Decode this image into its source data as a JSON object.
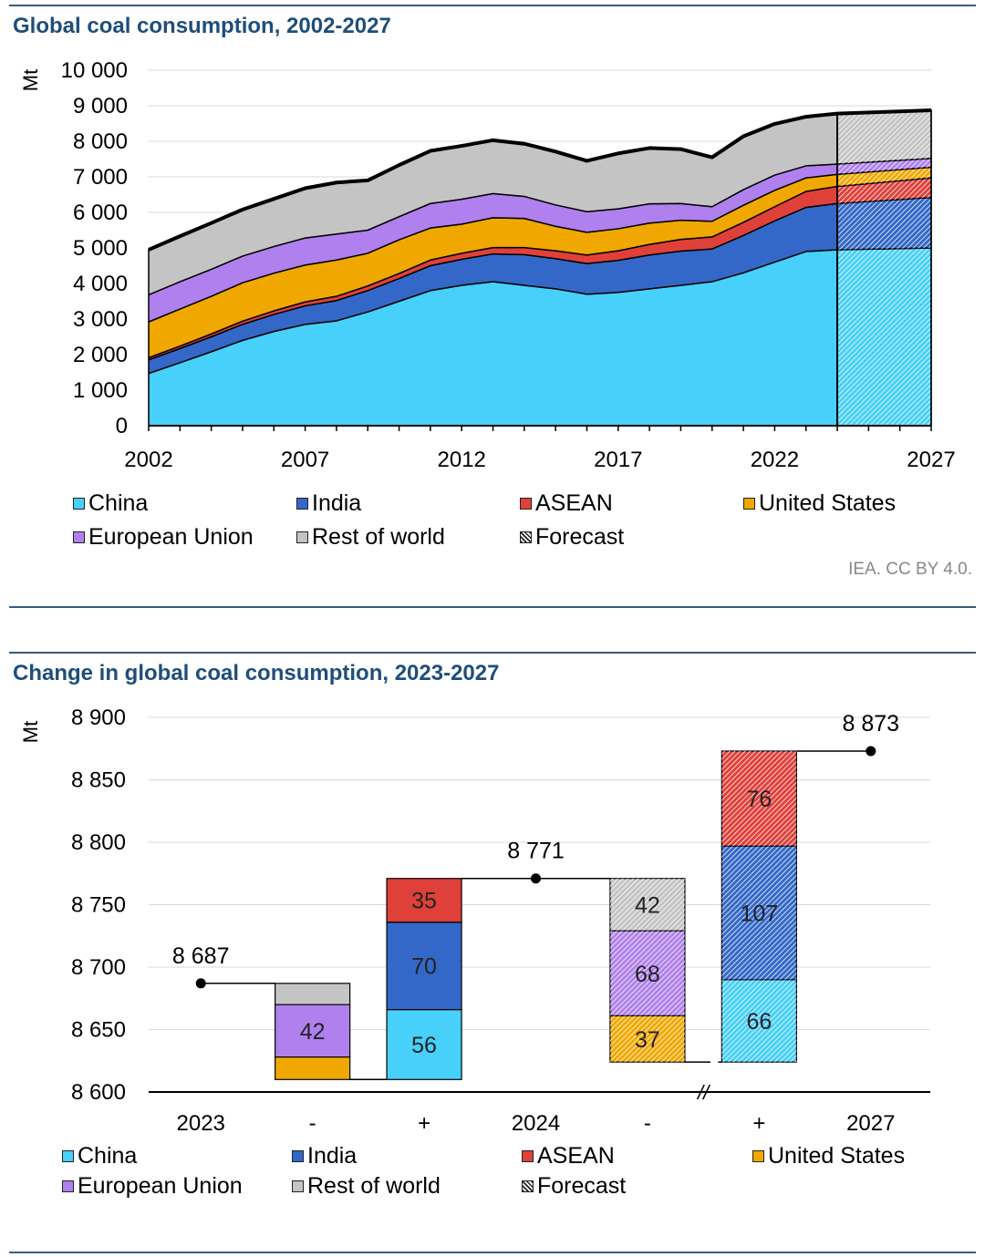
{
  "credit": "IEA. CC BY 4.0.",
  "colors": {
    "China": "#46d0fa",
    "India": "#3468c8",
    "ASEAN": "#e0403a",
    "United States": "#f0a800",
    "European Union": "#b080ee",
    "Rest of world": "#c4c4c4",
    "Forecast": "#ffffff"
  },
  "legend": [
    "China",
    "India",
    "ASEAN",
    "United States",
    "European Union",
    "Rest of world",
    "Forecast"
  ],
  "chart_data": [
    {
      "type": "area",
      "title": "Global coal consumption, 2002-2027",
      "ylabel": "Mt",
      "xlabel": "",
      "ylim": [
        0,
        10000
      ],
      "yticks": [
        "0",
        "1 000",
        "2 000",
        "3 000",
        "4 000",
        "5 000",
        "6 000",
        "7 000",
        "8 000",
        "9 000",
        "10 000"
      ],
      "xtick_labels": [
        "2002",
        "2007",
        "2012",
        "2017",
        "2022",
        "2027"
      ],
      "x": [
        2002,
        2003,
        2004,
        2005,
        2006,
        2007,
        2008,
        2009,
        2010,
        2011,
        2012,
        2013,
        2014,
        2015,
        2016,
        2017,
        2018,
        2019,
        2020,
        2021,
        2022,
        2023,
        2024,
        2027
      ],
      "forecast_from": 2024,
      "series": [
        {
          "name": "China",
          "values": [
            1470,
            1770,
            2080,
            2400,
            2650,
            2850,
            2950,
            3200,
            3500,
            3800,
            3950,
            4050,
            3950,
            3850,
            3700,
            3750,
            3850,
            3950,
            4050,
            4300,
            4600,
            4900,
            4950,
            5000
          ]
        },
        {
          "name": "India",
          "values": [
            380,
            400,
            420,
            450,
            480,
            520,
            570,
            600,
            640,
            700,
            730,
            780,
            860,
            850,
            860,
            900,
            950,
            960,
            920,
            1050,
            1160,
            1240,
            1300,
            1420
          ]
        },
        {
          "name": "ASEAN",
          "values": [
            60,
            70,
            80,
            90,
            100,
            110,
            120,
            130,
            140,
            160,
            170,
            180,
            200,
            220,
            240,
            270,
            300,
            330,
            340,
            370,
            400,
            450,
            480,
            550
          ]
        },
        {
          "name": "United States",
          "values": [
            1010,
            1040,
            1060,
            1080,
            1060,
            1040,
            1020,
            920,
            950,
            900,
            820,
            840,
            820,
            690,
            640,
            620,
            600,
            540,
            440,
            480,
            460,
            380,
            340,
            300
          ]
        },
        {
          "name": "European Union",
          "values": [
            760,
            770,
            760,
            750,
            750,
            760,
            730,
            650,
            650,
            690,
            700,
            680,
            620,
            600,
            580,
            560,
            540,
            470,
            410,
            440,
            430,
            340,
            290,
            250
          ]
        },
        {
          "name": "Rest of world",
          "values": [
            1270,
            1280,
            1300,
            1310,
            1340,
            1400,
            1450,
            1400,
            1450,
            1480,
            1500,
            1500,
            1480,
            1500,
            1430,
            1560,
            1570,
            1530,
            1390,
            1500,
            1440,
            1380,
            1420,
            1353
          ]
        }
      ],
      "totals_label": "Total",
      "legend_position": "bottom"
    },
    {
      "type": "bar",
      "subtype": "waterfall",
      "title": "Change in global coal consumption, 2023-2027",
      "ylabel": "Mt",
      "xlabel": "",
      "ylim": [
        8600,
        8900
      ],
      "yticks": [
        "8 600",
        "8 650",
        "8 700",
        "8 750",
        "8 800",
        "8 850",
        "8 900"
      ],
      "categories": [
        "2023",
        "-",
        "+",
        "2024",
        "-",
        "+",
        "2027"
      ],
      "totals": [
        {
          "category": "2023",
          "value": 8687,
          "label": "8 687"
        },
        {
          "category": "2024",
          "value": 8771,
          "label": "8 771"
        },
        {
          "category": "2027",
          "value": 8873,
          "label": "8 873"
        }
      ],
      "steps": [
        {
          "category_index": 1,
          "top": 8687,
          "segments": [
            {
              "series": "Rest of world",
              "value": 17,
              "label": ""
            },
            {
              "series": "European Union",
              "value": 42,
              "label": "42"
            },
            {
              "series": "United States",
              "value": 18,
              "label": ""
            }
          ],
          "forecast": false
        },
        {
          "category_index": 2,
          "bottom": 8610,
          "segments": [
            {
              "series": "China",
              "value": 56,
              "label": "56"
            },
            {
              "series": "India",
              "value": 70,
              "label": "70"
            },
            {
              "series": "ASEAN",
              "value": 35,
              "label": "35"
            }
          ],
          "forecast": false
        },
        {
          "category_index": 4,
          "top": 8771,
          "segments": [
            {
              "series": "Rest of world",
              "value": 42,
              "label": "42"
            },
            {
              "series": "European Union",
              "value": 68,
              "label": "68"
            },
            {
              "series": "United States",
              "value": 37,
              "label": "37"
            }
          ],
          "forecast": true
        },
        {
          "category_index": 5,
          "bottom": 8624,
          "segments": [
            {
              "series": "China",
              "value": 66,
              "label": "66"
            },
            {
              "series": "India",
              "value": 107,
              "label": "107"
            },
            {
              "series": "ASEAN",
              "value": 76,
              "label": "76"
            }
          ],
          "forecast": true
        }
      ],
      "axis_break": "//",
      "legend_position": "bottom"
    }
  ]
}
